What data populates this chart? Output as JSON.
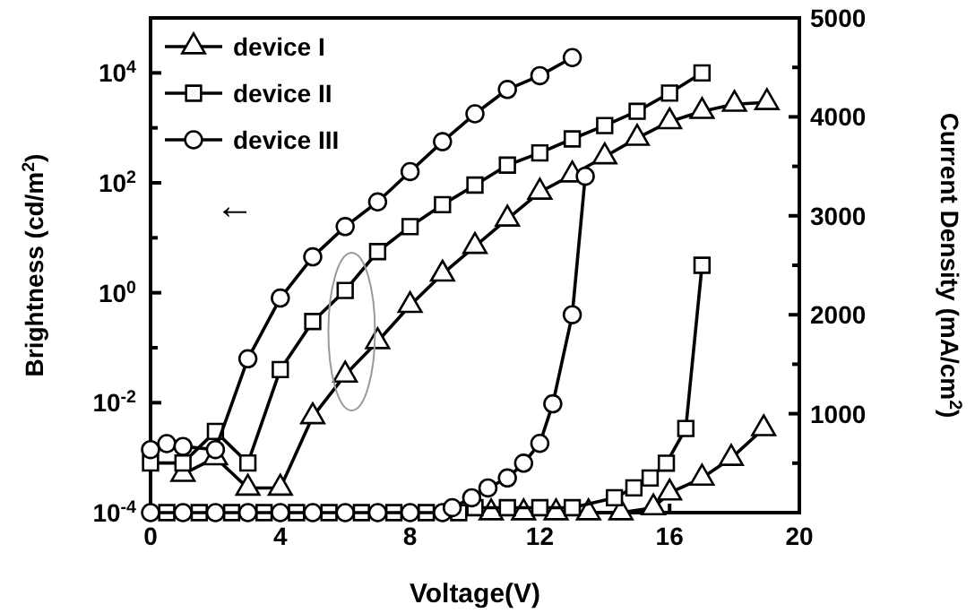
{
  "chart_data": {
    "type": "line",
    "xlabel": "Voltage(V)",
    "ylabel": "Brightness (cd/m$^{2}$)",
    "y2label": "Current Density (mA/cm$^{2}$)",
    "xlim": [
      0,
      20
    ],
    "xticks": [
      0,
      4,
      8,
      12,
      16,
      20
    ],
    "ylim": [
      0.0001,
      100000
    ],
    "yticks": [
      {
        "value": 0.0001,
        "label": "10$^{-4}$"
      },
      {
        "value": 0.001,
        "label": null
      },
      {
        "value": 0.01,
        "label": "10$^{-2}$"
      },
      {
        "value": 0.1,
        "label": null
      },
      {
        "value": 1,
        "label": "10$^{0}$"
      },
      {
        "value": 10,
        "label": null
      },
      {
        "value": 100,
        "label": "10$^{2}$"
      },
      {
        "value": 1000,
        "label": null
      },
      {
        "value": 10000,
        "label": "10$^{4}$"
      }
    ],
    "y2lim": [
      0,
      5000
    ],
    "y2ticks": [
      {
        "value": 500,
        "label": null
      },
      1000,
      {
        "value": 1500,
        "label": null
      },
      2000,
      {
        "value": 2500,
        "label": null
      },
      3000,
      {
        "value": 3500,
        "label": null
      },
      4000,
      {
        "value": 4500,
        "label": null
      },
      5000
    ],
    "log": "y",
    "grid": false,
    "legend": "top left",
    "annotations": [
      "←"
    ],
    "series": [
      {
        "name": "device I",
        "color": "#000000",
        "marker": "triangle",
        "x": [
          1,
          2,
          3,
          4,
          5,
          6,
          7,
          8,
          9,
          10,
          11,
          12,
          13,
          14,
          15,
          16,
          17,
          18,
          19
        ],
        "values": [
          0.0005,
          0.001,
          0.00028,
          0.00028,
          0.0056,
          0.032,
          0.13,
          0.59,
          2.2,
          7,
          22,
          68,
          140,
          300,
          650,
          1300,
          2000,
          2700,
          2900
        ]
      },
      {
        "name": "device II",
        "color": "#000000",
        "marker": "square",
        "x": [
          0,
          1,
          2,
          3,
          4,
          5,
          6,
          7,
          8,
          9,
          10,
          11,
          12,
          13,
          14,
          15,
          16,
          17
        ],
        "values": [
          0.0008,
          0.0008,
          0.003,
          0.0008,
          0.04,
          0.3,
          1.1,
          5.6,
          16,
          40,
          91,
          210,
          350,
          630,
          1100,
          2000,
          4300,
          10000
        ]
      },
      {
        "name": "device III",
        "color": "#000000",
        "marker": "circle",
        "x": [
          0,
          0.5,
          1,
          2,
          3,
          4,
          5,
          6,
          7,
          8,
          9,
          10,
          11,
          12,
          13
        ],
        "values": [
          0.0014,
          0.0018,
          0.0016,
          0.0014,
          0.063,
          0.8,
          4.5,
          16,
          45,
          160,
          560,
          1800,
          5000,
          8900,
          19000
        ]
      },
      {
        "color": "#000000",
        "marker": "triangle",
        "axis": "y2",
        "x": [
          10.5,
          11.5,
          12.5,
          13.5,
          14.5,
          15.5,
          16,
          17,
          17.9,
          18.9
        ],
        "values": [
          0,
          0,
          0,
          0,
          0,
          50,
          200,
          350,
          550,
          850
        ]
      },
      {
        "color": "#000000",
        "marker": "square",
        "axis": "y2",
        "x": [
          0.5,
          1.5,
          2.5,
          3.5,
          4.5,
          5.5,
          6.5,
          7.5,
          8.5,
          9.5,
          10,
          11,
          12,
          13,
          14.3,
          14.9,
          15.4,
          15.9,
          16.5,
          17
        ],
        "values": [
          0,
          0,
          0,
          0,
          0,
          0,
          0,
          0,
          0,
          0,
          50,
          50,
          50,
          50,
          150,
          250,
          350,
          500,
          850,
          2500
        ]
      },
      {
        "color": "#000000",
        "marker": "circle",
        "axis": "y2",
        "x": [
          0,
          1,
          2,
          3,
          4,
          5,
          6,
          7,
          8,
          9,
          9.3,
          9.9,
          10.4,
          11,
          11.5,
          12,
          12.4,
          13,
          13.4
        ],
        "values": [
          0,
          0,
          0,
          0,
          0,
          0,
          0,
          0,
          0,
          0,
          50,
          150,
          250,
          350,
          500,
          700,
          1100,
          2000,
          3400
        ]
      }
    ]
  }
}
